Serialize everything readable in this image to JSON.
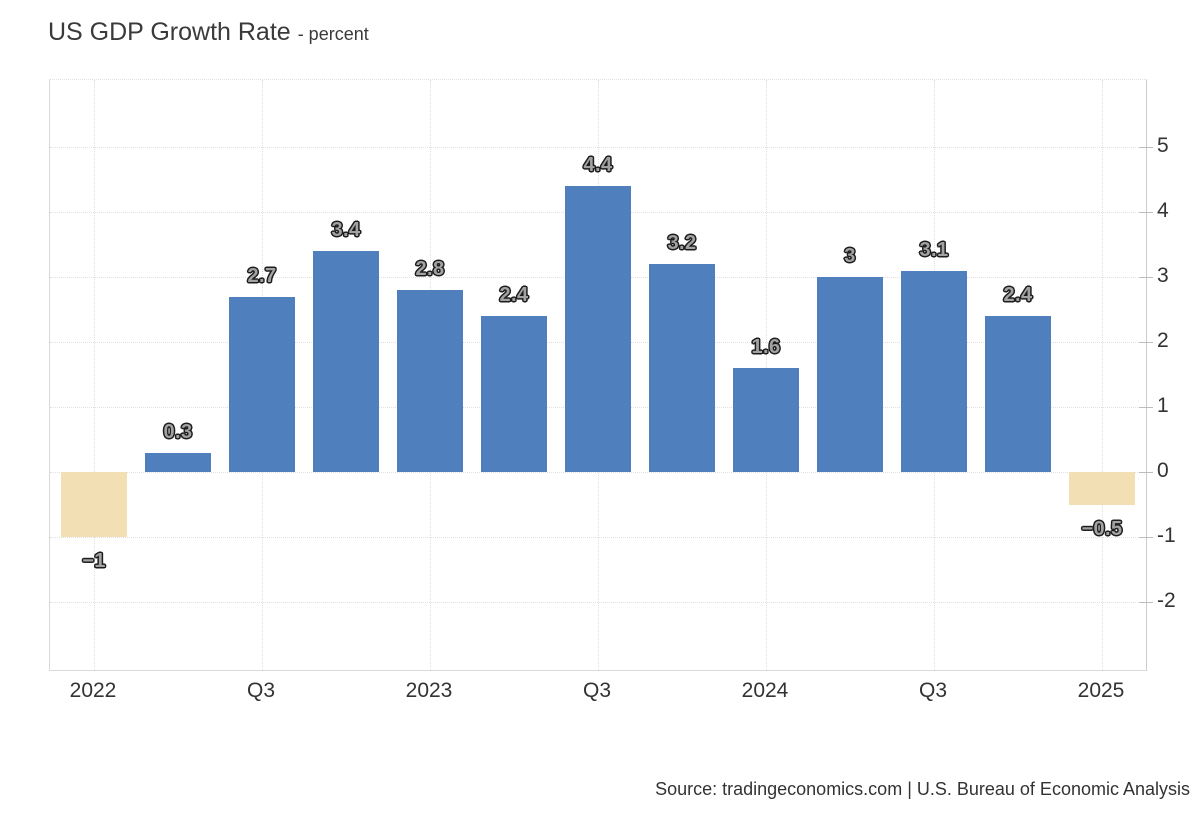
{
  "title": {
    "main": "US GDP Growth Rate",
    "suffix": "- percent"
  },
  "source": "Source: tradingeconomics.com | U.S. Bureau of Economic Analysis",
  "colors": {
    "bar_positive": "#4f7fbc",
    "bar_negative": "#f3dfb4",
    "grid": "#e0e0e0",
    "border": "#d9d9d9",
    "axis": "#cccccc",
    "tick": "#bdbdbd",
    "axis_text": "#333333",
    "title_text": "#3a3a3a",
    "value_fill": "#a2a2a2",
    "value_outline": "#1d1d1d",
    "source_text": "#333333"
  },
  "chart_data": {
    "type": "bar",
    "title": "US GDP Growth Rate",
    "ylabel": "percent",
    "xlabel": "",
    "grid": "dotted",
    "legend": false,
    "y_axis_side": "right",
    "ylim": [
      -3,
      6
    ],
    "y_ticks": [
      5,
      4,
      3,
      2,
      1,
      0,
      -1,
      -2
    ],
    "values": [
      -1,
      0.3,
      2.7,
      3.4,
      2.8,
      2.4,
      4.4,
      3.2,
      1.6,
      3,
      3.1,
      2.4,
      -0.5
    ],
    "bar_labels": [
      "−1",
      "0.3",
      "2.7",
      "3.4",
      "2.8",
      "2.4",
      "4.4",
      "3.2",
      "1.6",
      "3",
      "3.1",
      "2.4",
      "−0.5"
    ],
    "x_tick_labels": [
      "2022",
      "Q3",
      "2023",
      "Q3",
      "2024",
      "Q3",
      "2025"
    ],
    "x_tick_bar_indexes": [
      0,
      2,
      4,
      6,
      8,
      10,
      12
    ]
  }
}
